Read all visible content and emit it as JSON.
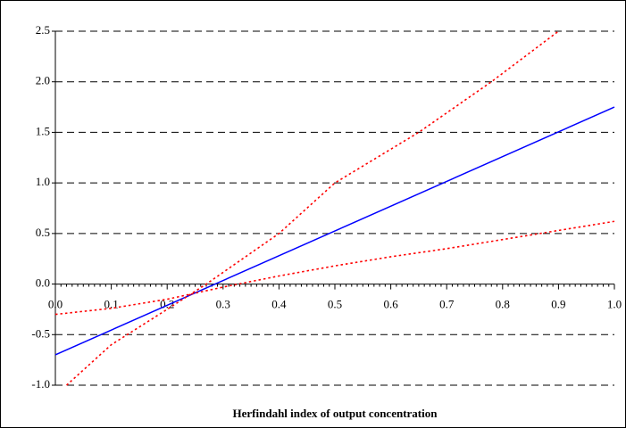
{
  "chart_data": {
    "type": "line",
    "x_label": "Herfindahl index of output concentration",
    "xlim": [
      0,
      1
    ],
    "xticks": [
      {
        "value": 0,
        "label": "0.0"
      },
      0.1,
      0.2,
      0.3,
      0.4,
      0.5,
      0.6,
      0.7,
      0.8,
      0.9,
      {
        "value": 1,
        "label": "1.0"
      }
    ],
    "ylim": [
      -1,
      2.5
    ],
    "yticks": [
      {
        "value": -1,
        "label": "-1.0"
      },
      -0.5,
      {
        "value": 0,
        "label": "0.0"
      },
      0.5,
      {
        "value": 1,
        "label": "1.0"
      },
      1.5,
      {
        "value": 2,
        "label": "2.0"
      },
      2.5
    ],
    "grid": true,
    "series": [
      {
        "color": "#0000ff",
        "style": "solid",
        "x": [
          0,
          1
        ],
        "values": [
          -0.7,
          1.75
        ]
      },
      {
        "color": "#ff0000",
        "style": "dotted",
        "x": [
          0.02,
          0.1,
          0.2,
          0.27,
          0.4,
          0.5,
          0.65,
          0.78,
          0.9
        ],
        "values": [
          -1.0,
          -0.6,
          -0.25,
          0.0,
          0.5,
          1.0,
          1.5,
          2.0,
          2.5
        ]
      },
      {
        "color": "#ff0000",
        "style": "dotted",
        "x": [
          0,
          0.1,
          0.2,
          0.3,
          0.4,
          0.5,
          0.6,
          0.7,
          0.8,
          0.9,
          1
        ],
        "values": [
          -0.3,
          -0.24,
          -0.15,
          -0.03,
          0.08,
          0.18,
          0.27,
          0.35,
          0.44,
          0.53,
          0.62
        ]
      }
    ]
  }
}
